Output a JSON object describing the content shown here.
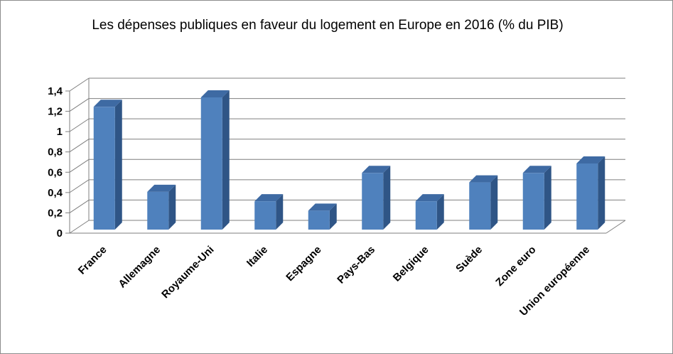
{
  "chart_data": {
    "type": "bar",
    "title": "Les dépenses publiques  en faveur du logement en Europe en 2016 (% du PIB)",
    "categories": [
      "France",
      "Allemagne",
      "Royaume-Uni",
      "Italie",
      "Espagne",
      "Pays-Bas",
      "Belgique",
      "Suède",
      "Zone euro",
      "Union européenne"
    ],
    "series": [
      {
        "values": [
          1.3,
          0.4,
          1.4,
          0.3,
          0.2,
          0.6,
          0.3,
          0.5,
          0.6,
          0.7
        ]
      }
    ],
    "ylim": [
      0,
      1.4
    ],
    "yticks": [
      "0",
      "0,2",
      "0,4",
      "0,6",
      "0,8",
      "1",
      "1,2",
      "1,4"
    ],
    "xlabel": "",
    "ylabel": "",
    "grid": true,
    "legend": "none",
    "colors": {
      "bar_front": "#4f81bd",
      "bar_side": "#2f5586",
      "bar_top": "#3e6aa3",
      "grid": "#7f7f7f"
    }
  }
}
